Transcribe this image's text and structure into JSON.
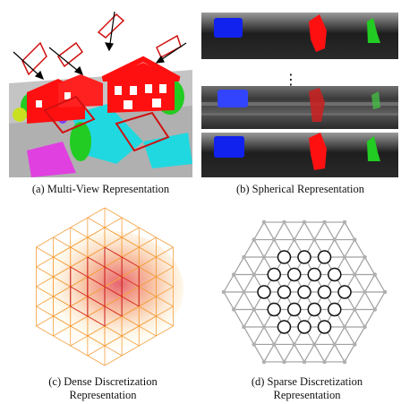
{
  "figure": {
    "panels": [
      {
        "id": "a",
        "caption": "(a) Multi-View Representation"
      },
      {
        "id": "b",
        "caption": "(b) Spherical Representation"
      },
      {
        "id": "c",
        "caption_line1": "(c) Dense Discretization",
        "caption_line2": "Representation"
      },
      {
        "id": "d",
        "caption_line1": "(d) Sparse Discretization",
        "caption_line2": "Representation"
      }
    ],
    "ellipsis": "⋮",
    "colors": {
      "house": "#ff1010",
      "tree": "#22cc22",
      "cyan": "#20d8e0",
      "magenta": "#e040e0",
      "ground": "#bdbdbd",
      "blue_car": "#1122ee",
      "voxel_line": "#ff9a30",
      "grid_line": "#a0a0a0",
      "node_fill": "#ffffff",
      "node_stroke": "#111111"
    }
  }
}
